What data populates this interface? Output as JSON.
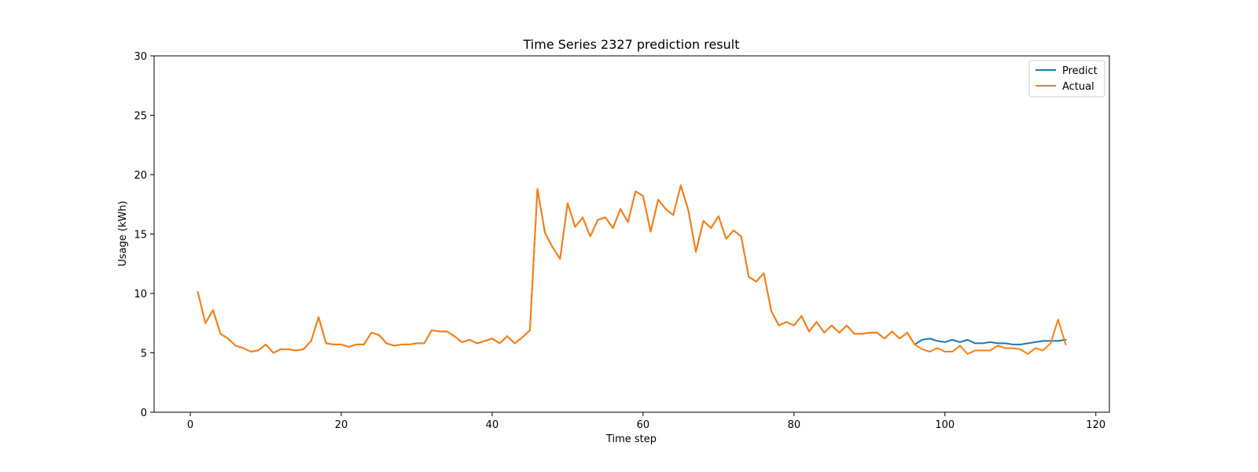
{
  "chart_data": {
    "type": "line",
    "title": "Time Series 2327 prediction result",
    "xlabel": "Time step",
    "ylabel": "Usage (kWh)",
    "xlim": [
      -4.8,
      121.8
    ],
    "ylim": [
      0,
      30
    ],
    "xticks": [
      0,
      20,
      40,
      60,
      80,
      100,
      120
    ],
    "yticks": [
      0,
      5,
      10,
      15,
      20,
      25,
      30
    ],
    "grid": false,
    "legend_position": "top-right",
    "series": [
      {
        "name": "Predict",
        "color": "#1f77b4",
        "x_start": 1,
        "values": [
          10.1,
          7.5,
          8.6,
          6.6,
          6.2,
          5.6,
          5.4,
          5.1,
          5.2,
          5.7,
          5.0,
          5.3,
          5.3,
          5.2,
          5.3,
          6.0,
          8.0,
          5.8,
          5.7,
          5.7,
          5.5,
          5.7,
          5.7,
          6.7,
          6.5,
          5.8,
          5.6,
          5.7,
          5.7,
          5.8,
          5.8,
          6.9,
          6.8,
          6.8,
          6.4,
          5.9,
          6.1,
          5.8,
          6.0,
          6.2,
          5.8,
          6.4,
          5.8,
          6.3,
          6.9,
          18.8,
          15.1,
          13.9,
          12.9,
          17.6,
          15.6,
          16.4,
          14.8,
          16.2,
          16.4,
          15.5,
          17.1,
          16.0,
          18.6,
          18.2,
          15.2,
          17.9,
          17.1,
          16.6,
          19.1,
          17.0,
          13.5,
          16.1,
          15.5,
          16.5,
          14.6,
          15.3,
          14.8,
          11.4,
          11.0,
          11.7,
          8.5,
          7.3,
          7.6,
          7.3,
          8.1,
          6.8,
          7.6,
          6.7,
          7.3,
          6.7,
          7.3,
          6.6,
          6.6,
          6.7,
          6.7,
          6.2,
          6.8,
          6.2,
          6.7,
          5.7,
          6.1,
          6.2,
          6.0,
          5.9,
          6.1,
          5.9,
          6.1,
          5.8,
          5.8,
          5.9,
          5.8,
          5.8,
          5.7,
          5.7,
          5.8,
          5.9,
          6.0,
          6.0,
          6.0,
          6.1
        ]
      },
      {
        "name": "Actual",
        "color": "#ff7f0e",
        "x_start": 1,
        "values": [
          10.1,
          7.5,
          8.6,
          6.6,
          6.2,
          5.6,
          5.4,
          5.1,
          5.2,
          5.7,
          5.0,
          5.3,
          5.3,
          5.2,
          5.3,
          6.0,
          8.0,
          5.8,
          5.7,
          5.7,
          5.5,
          5.7,
          5.7,
          6.7,
          6.5,
          5.8,
          5.6,
          5.7,
          5.7,
          5.8,
          5.8,
          6.9,
          6.8,
          6.8,
          6.4,
          5.9,
          6.1,
          5.8,
          6.0,
          6.2,
          5.8,
          6.4,
          5.8,
          6.3,
          6.9,
          18.8,
          15.1,
          13.9,
          12.9,
          17.6,
          15.6,
          16.4,
          14.8,
          16.2,
          16.4,
          15.5,
          17.1,
          16.0,
          18.6,
          18.2,
          15.2,
          17.9,
          17.1,
          16.6,
          19.1,
          17.0,
          13.5,
          16.1,
          15.5,
          16.5,
          14.6,
          15.3,
          14.8,
          11.4,
          11.0,
          11.7,
          8.5,
          7.3,
          7.6,
          7.3,
          8.1,
          6.8,
          7.6,
          6.7,
          7.3,
          6.7,
          7.3,
          6.6,
          6.6,
          6.7,
          6.7,
          6.2,
          6.8,
          6.2,
          6.7,
          5.7,
          5.3,
          5.1,
          5.4,
          5.1,
          5.1,
          5.6,
          4.9,
          5.2,
          5.2,
          5.2,
          5.6,
          5.4,
          5.4,
          5.3,
          4.9,
          5.4,
          5.2,
          5.8,
          7.8,
          5.7
        ]
      }
    ]
  }
}
